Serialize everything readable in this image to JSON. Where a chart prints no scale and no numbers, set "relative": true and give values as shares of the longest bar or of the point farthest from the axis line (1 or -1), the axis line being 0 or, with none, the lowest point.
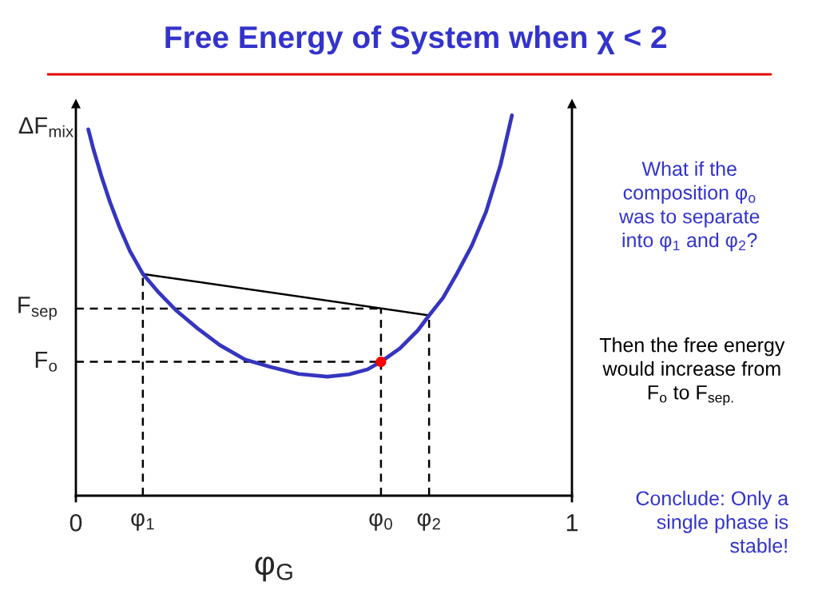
{
  "chart_data": {
    "type": "line",
    "title": "Free Energy of System when χ < 2",
    "xlabel": "φ$_{G}$",
    "ylabel": "ΔF$_{mix}$",
    "relative": true,
    "xlim": [
      0,
      1
    ],
    "xticks": [
      0,
      1
    ],
    "tick_labels": "x",
    "series": [
      {
        "color": "#3535c0",
        "line_style": "solid",
        "x": [
          0.025,
          0.036,
          0.051,
          0.069,
          0.087,
          0.109,
          0.135,
          0.167,
          0.203,
          0.246,
          0.29,
          0.341,
          0.391,
          0.449,
          0.507,
          0.551,
          0.588,
          0.615,
          0.653,
          0.689,
          0.712,
          0.74,
          0.769,
          0.798,
          0.827,
          0.856,
          0.879
        ],
        "values": [
          0.963,
          0.908,
          0.842,
          0.771,
          0.709,
          0.643,
          0.583,
          0.534,
          0.486,
          0.439,
          0.396,
          0.358,
          0.339,
          0.32,
          0.313,
          0.319,
          0.332,
          0.352,
          0.387,
          0.434,
          0.474,
          0.52,
          0.586,
          0.657,
          0.747,
          0.87,
          1
        ]
      },
      {
        "color": "#000000",
        "line_style": "solid",
        "x": [
          0.135,
          0.712
        ],
        "values": [
          0.583,
          0.474
        ]
      },
      {
        "color": "#000000",
        "line_style": "dashed",
        "x": [
          0,
          0.615
        ],
        "values": [
          0.492,
          0.492
        ]
      },
      {
        "color": "#000000",
        "line_style": "dashed",
        "x": [
          0,
          0.615
        ],
        "values": [
          0.352,
          0.352
        ]
      },
      {
        "color": "#000000",
        "line_style": "dashed",
        "x": [
          0.135,
          0.135
        ],
        "values": [
          0,
          0.583
        ]
      },
      {
        "color": "#000000",
        "line_style": "dashed",
        "x": [
          0.615,
          0.615
        ],
        "values": [
          0,
          0.492
        ]
      },
      {
        "color": "#000000",
        "line_style": "dashed",
        "x": [
          0.712,
          0.712
        ],
        "values": [
          0,
          0.474
        ]
      },
      {
        "type": "scatter",
        "color": "#ff0000",
        "marker": "circle",
        "x": [
          0.615
        ],
        "values": [
          0.352
        ]
      }
    ],
    "annotations": [
      {
        "text": "F$_{sep}$",
        "x": 0,
        "y": 0.492
      },
      {
        "text": "F$_{o}$",
        "x": 0,
        "y": 0.352
      },
      {
        "text": "φ$_{1}$",
        "x": 0.135,
        "y": 0
      },
      {
        "text": "φ$_{0}$",
        "x": 0.615,
        "y": 0
      },
      {
        "text": "φ$_{2}$",
        "x": 0.712,
        "y": 0
      },
      "What if the\ncomposition φ$_{o}$\nwas to separate\ninto φ$_{1}$ and φ$_{2}$?",
      "Then the free energy\nwould increase from\nF$_{o}$ to F$_{sep.}$",
      "Conclude: Only a\nsingle phase is\nstable!"
    ]
  }
}
